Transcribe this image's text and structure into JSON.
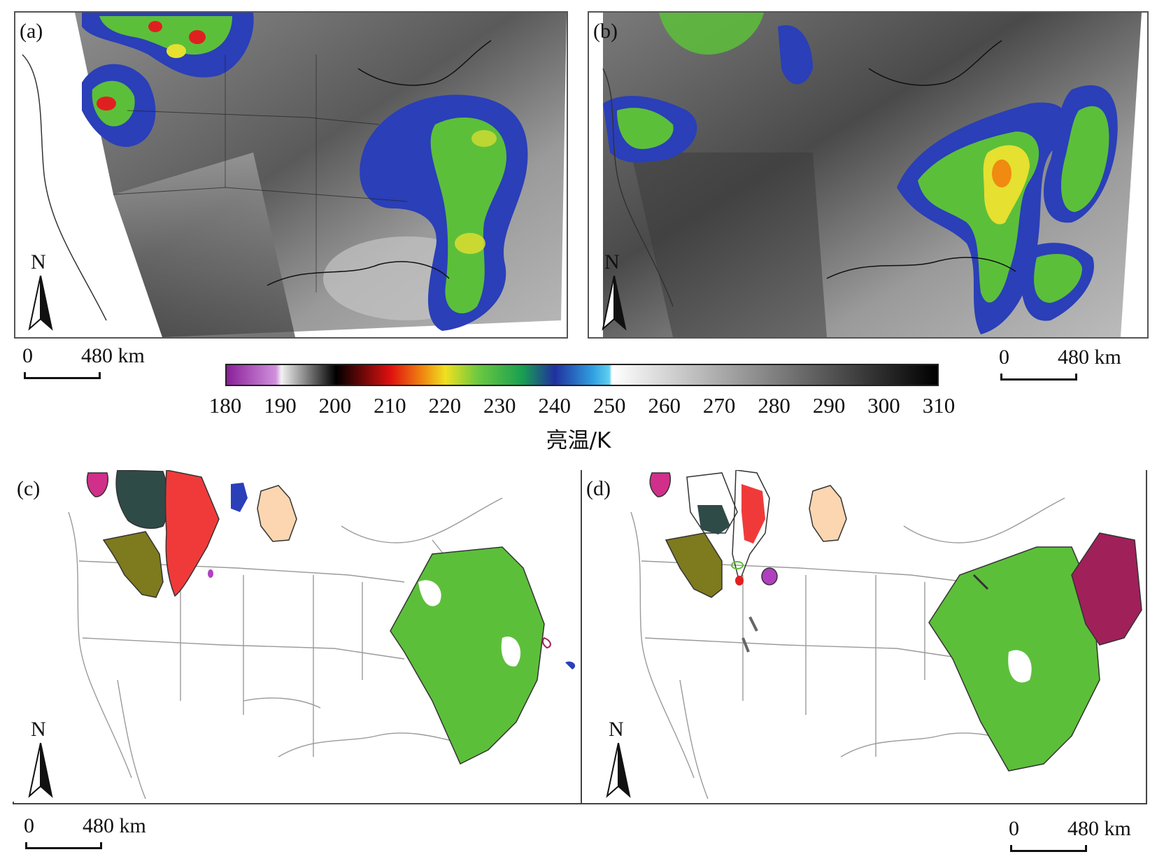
{
  "panels": [
    {
      "label": "(a)",
      "north": "N",
      "scale_zero": "0",
      "scale_dist": "480 km"
    },
    {
      "label": "(b)",
      "north": "N",
      "scale_zero": "0",
      "scale_dist": "480 km"
    },
    {
      "label": "(c)",
      "north": "N",
      "scale_zero": "0",
      "scale_dist": "480 km"
    },
    {
      "label": "(d)",
      "north": "N",
      "scale_zero": "0",
      "scale_dist": "480 km"
    }
  ],
  "colorbar": {
    "title": "亮温/K",
    "ticks": [
      "180",
      "190",
      "200",
      "210",
      "220",
      "230",
      "240",
      "250",
      "260",
      "270",
      "280",
      "290",
      "300",
      "310"
    ],
    "min": 180,
    "max": 310,
    "stops": [
      {
        "v": 180,
        "c": "#8a1f9a"
      },
      {
        "v": 189,
        "c": "#d090dc"
      },
      {
        "v": 190,
        "c": "#f2f2f2"
      },
      {
        "v": 200,
        "c": "#000000"
      },
      {
        "v": 210,
        "c": "#e01010"
      },
      {
        "v": 216,
        "c": "#f08a10"
      },
      {
        "v": 220,
        "c": "#f0e020"
      },
      {
        "v": 226,
        "c": "#6cc840"
      },
      {
        "v": 234,
        "c": "#1aa050"
      },
      {
        "v": 240,
        "c": "#2030a0"
      },
      {
        "v": 247,
        "c": "#30a0e0"
      },
      {
        "v": 250,
        "c": "#60d0f0"
      },
      {
        "v": 250.5,
        "c": "#ffffff"
      },
      {
        "v": 310,
        "c": "#000000"
      }
    ]
  },
  "colors": {
    "cloud_green": "#5cbf3a",
    "cloud_blue": "#2a3fb8",
    "cloud_yellow": "#e6e030",
    "cloud_red": "#e02020",
    "cluster_magenta": "#d0308a",
    "cluster_darkslate": "#2f4b47",
    "cluster_red": "#f03a3a",
    "cluster_olive": "#7e7a1e",
    "cluster_peach": "#fcd6b0",
    "cluster_maroon": "#a0205a",
    "cluster_violet": "#b040c0"
  }
}
